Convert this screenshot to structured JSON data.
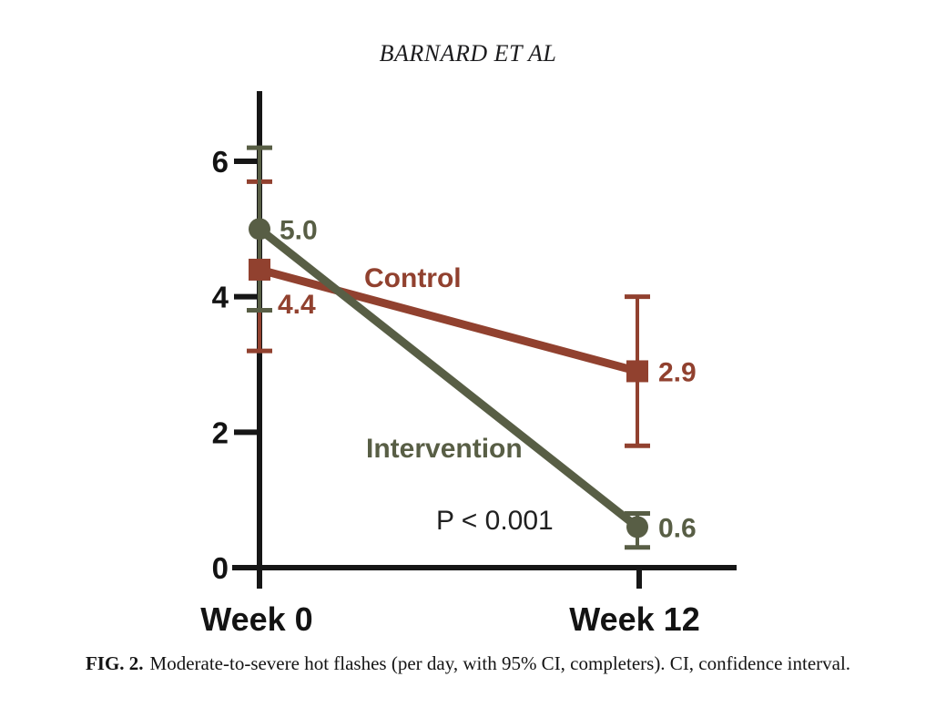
{
  "page": {
    "running_head": "BARNARD ET AL"
  },
  "caption": {
    "label": "FIG. 2.",
    "text": "Moderate-to-severe hot flashes (per day, with 95% CI, completers). CI, confidence interval."
  },
  "chart_data": {
    "type": "line",
    "title": "",
    "xlabel": "",
    "ylabel": "",
    "categories": [
      "Week 0",
      "Week 12"
    ],
    "series": [
      {
        "name": "Control",
        "marker": "square",
        "color": "#91412F",
        "values": [
          4.4,
          2.9
        ],
        "ci": [
          [
            3.2,
            5.7
          ],
          [
            1.8,
            4.0
          ]
        ],
        "point_labels": [
          "4.4",
          "2.9"
        ]
      },
      {
        "name": "Intervention",
        "marker": "circle",
        "color": "#585E45",
        "values": [
          5.0,
          0.6
        ],
        "ci": [
          [
            3.8,
            6.2
          ],
          [
            0.3,
            0.8
          ]
        ],
        "point_labels": [
          "5.0",
          "0.6"
        ]
      }
    ],
    "yticks": [
      0,
      2,
      4,
      6
    ],
    "ylim": [
      0,
      6.6
    ],
    "error_bars": "95% CI",
    "annotation": "P < 0.001",
    "grid": false,
    "legend_position": "inline",
    "axis_color": "#161616"
  }
}
